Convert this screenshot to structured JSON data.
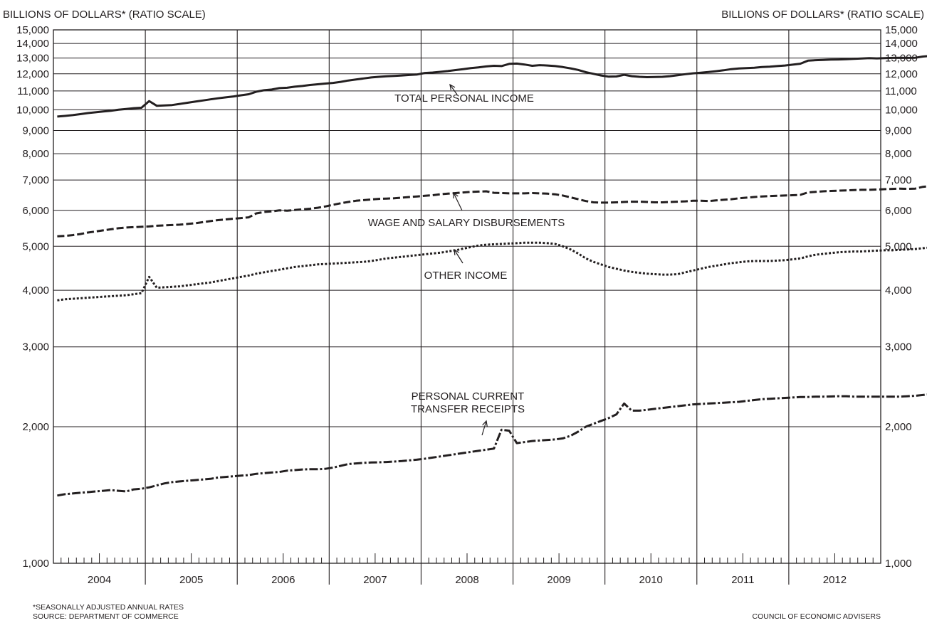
{
  "chart_data": {
    "type": "line",
    "scale": "log",
    "grid": true,
    "ylabel_left": "BILLIONS OF DOLLARS* (RATIO SCALE)",
    "ylabel_right": "BILLIONS OF DOLLARS* (RATIO SCALE)",
    "ylim": [
      1000,
      15000
    ],
    "yticks": [
      1000,
      2000,
      3000,
      4000,
      5000,
      6000,
      7000,
      8000,
      9000,
      10000,
      11000,
      12000,
      13000,
      14000,
      15000
    ],
    "ytick_labels": [
      "1,000",
      "2,000",
      "3,000",
      "4,000",
      "5,000",
      "6,000",
      "7,000",
      "8,000",
      "9,000",
      "10,000",
      "11,000",
      "12,000",
      "13,000",
      "14,000",
      "15,000"
    ],
    "years": [
      "2004",
      "2005",
      "2006",
      "2007",
      "2008",
      "2009",
      "2010",
      "2011",
      "2012"
    ],
    "x_start": "2004-01",
    "x_end": "2012-12",
    "annotations": [
      {
        "text": "TOTAL PERSONAL INCOME",
        "series": "TOTAL PERSONAL INCOME"
      },
      {
        "text": "WAGE AND SALARY DISBURSEMENTS",
        "series": "WAGE AND SALARY DISBURSEMENTS"
      },
      {
        "text": "OTHER INCOME",
        "series": "OTHER INCOME"
      },
      {
        "text": "PERSONAL CURRENT\nTRANSFER RECEIPTS",
        "series": "PERSONAL CURRENT TRANSFER RECEIPTS"
      }
    ],
    "series": [
      {
        "name": "TOTAL PERSONAL INCOME",
        "style": "solid",
        "values": [
          9660,
          9690,
          9730,
          9780,
          9830,
          9870,
          9910,
          9950,
          10000,
          10040,
          10080,
          10100,
          10450,
          10200,
          10220,
          10240,
          10300,
          10360,
          10420,
          10480,
          10540,
          10600,
          10650,
          10700,
          10760,
          10820,
          10960,
          11040,
          11080,
          11160,
          11180,
          11240,
          11280,
          11340,
          11380,
          11420,
          11460,
          11520,
          11600,
          11660,
          11720,
          11780,
          11820,
          11850,
          11870,
          11900,
          11930,
          11960,
          12050,
          12080,
          12120,
          12170,
          12230,
          12290,
          12350,
          12400,
          12460,
          12500,
          12480,
          12620,
          12640,
          12580,
          12500,
          12540,
          12520,
          12480,
          12420,
          12340,
          12240,
          12100,
          12000,
          11900,
          11830,
          11840,
          11940,
          11860,
          11820,
          11800,
          11810,
          11820,
          11860,
          11920,
          11980,
          12030,
          12070,
          12110,
          12160,
          12220,
          12290,
          12330,
          12350,
          12380,
          12420,
          12440,
          12480,
          12520,
          12570,
          12630,
          12830,
          12860,
          12880,
          12900,
          12910,
          12920,
          12950,
          12970,
          12990,
          12980,
          12990,
          13010,
          13020,
          13010,
          13020,
          13100,
          13150,
          13200,
          13250,
          13270,
          13290,
          13300,
          13320,
          13340,
          13360,
          13380,
          13400,
          13440,
          13470,
          13500,
          13620,
          13950
        ]
      },
      {
        "name": "WAGE AND SALARY DISBURSEMENTS",
        "style": "dashed",
        "values": [
          5260,
          5270,
          5290,
          5320,
          5360,
          5390,
          5420,
          5450,
          5480,
          5500,
          5510,
          5520,
          5530,
          5550,
          5560,
          5570,
          5580,
          5600,
          5620,
          5650,
          5680,
          5710,
          5730,
          5750,
          5770,
          5790,
          5910,
          5950,
          5970,
          6000,
          5990,
          6010,
          6030,
          6050,
          6080,
          6120,
          6170,
          6220,
          6260,
          6300,
          6320,
          6340,
          6360,
          6370,
          6380,
          6400,
          6420,
          6440,
          6460,
          6480,
          6510,
          6530,
          6550,
          6570,
          6590,
          6600,
          6610,
          6560,
          6550,
          6540,
          6540,
          6540,
          6550,
          6540,
          6530,
          6510,
          6470,
          6410,
          6350,
          6290,
          6250,
          6240,
          6240,
          6250,
          6260,
          6270,
          6270,
          6260,
          6250,
          6250,
          6260,
          6270,
          6280,
          6300,
          6300,
          6290,
          6310,
          6330,
          6350,
          6380,
          6400,
          6420,
          6440,
          6450,
          6460,
          6470,
          6480,
          6490,
          6570,
          6590,
          6610,
          6620,
          6630,
          6640,
          6650,
          6660,
          6660,
          6670,
          6680,
          6690,
          6700,
          6690,
          6700,
          6760,
          6790,
          6820,
          6840,
          6850,
          6840,
          6850,
          6850,
          6860,
          6870,
          6870,
          6880,
          6890,
          6910,
          6930,
          6970,
          6980
        ]
      },
      {
        "name": "OTHER INCOME",
        "style": "dotted",
        "values": [
          3800,
          3820,
          3830,
          3840,
          3850,
          3860,
          3870,
          3880,
          3890,
          3900,
          3920,
          3940,
          4280,
          4050,
          4060,
          4070,
          4080,
          4100,
          4120,
          4140,
          4160,
          4190,
          4220,
          4250,
          4280,
          4310,
          4350,
          4380,
          4410,
          4440,
          4470,
          4500,
          4520,
          4540,
          4560,
          4570,
          4580,
          4590,
          4600,
          4610,
          4620,
          4640,
          4670,
          4700,
          4720,
          4740,
          4760,
          4780,
          4800,
          4820,
          4840,
          4870,
          4900,
          4940,
          4980,
          5020,
          5040,
          5050,
          5060,
          5070,
          5080,
          5090,
          5090,
          5090,
          5080,
          5060,
          5000,
          4920,
          4820,
          4700,
          4620,
          4560,
          4500,
          4460,
          4420,
          4390,
          4370,
          4350,
          4340,
          4330,
          4330,
          4340,
          4380,
          4420,
          4460,
          4500,
          4530,
          4560,
          4590,
          4610,
          4630,
          4640,
          4640,
          4640,
          4650,
          4660,
          4680,
          4700,
          4750,
          4790,
          4810,
          4830,
          4850,
          4860,
          4870,
          4870,
          4880,
          4890,
          4900,
          4900,
          4910,
          4920,
          4930,
          4950,
          4970,
          4990,
          5010,
          5020,
          5030,
          5040,
          5040,
          5040,
          5050,
          5050,
          5060,
          5080,
          5100,
          5150,
          5250,
          5470
        ]
      },
      {
        "name": "PERSONAL CURRENT TRANSFER RECEIPTS",
        "style": "dash-dot",
        "values": [
          1410,
          1420,
          1425,
          1430,
          1435,
          1440,
          1445,
          1450,
          1445,
          1440,
          1455,
          1460,
          1470,
          1485,
          1500,
          1510,
          1515,
          1520,
          1525,
          1530,
          1535,
          1545,
          1550,
          1555,
          1560,
          1565,
          1575,
          1580,
          1585,
          1590,
          1600,
          1605,
          1610,
          1612,
          1612,
          1615,
          1625,
          1640,
          1655,
          1660,
          1665,
          1668,
          1670,
          1672,
          1676,
          1680,
          1686,
          1692,
          1700,
          1710,
          1720,
          1730,
          1740,
          1750,
          1760,
          1770,
          1780,
          1790,
          1970,
          1960,
          1840,
          1850,
          1860,
          1865,
          1870,
          1875,
          1885,
          1910,
          1950,
          2000,
          2030,
          2060,
          2090,
          2130,
          2250,
          2170,
          2170,
          2180,
          2190,
          2200,
          2210,
          2220,
          2230,
          2240,
          2245,
          2250,
          2255,
          2260,
          2265,
          2270,
          2280,
          2290,
          2300,
          2305,
          2310,
          2315,
          2320,
          2325,
          2325,
          2330,
          2330,
          2332,
          2335,
          2335,
          2330,
          2330,
          2330,
          2330,
          2330,
          2330,
          2330,
          2335,
          2340,
          2350,
          2360,
          2370,
          2380,
          2385,
          2390,
          2395,
          2400,
          2405,
          2410,
          2415,
          2420,
          2425,
          2425,
          2430,
          2435,
          2440
        ]
      }
    ]
  },
  "footer": {
    "note": "*SEASONALLY ADJUSTED ANNUAL RATES",
    "source": "SOURCE: DEPARTMENT OF COMMERCE",
    "credit": "COUNCIL OF ECONOMIC ADVISERS"
  }
}
